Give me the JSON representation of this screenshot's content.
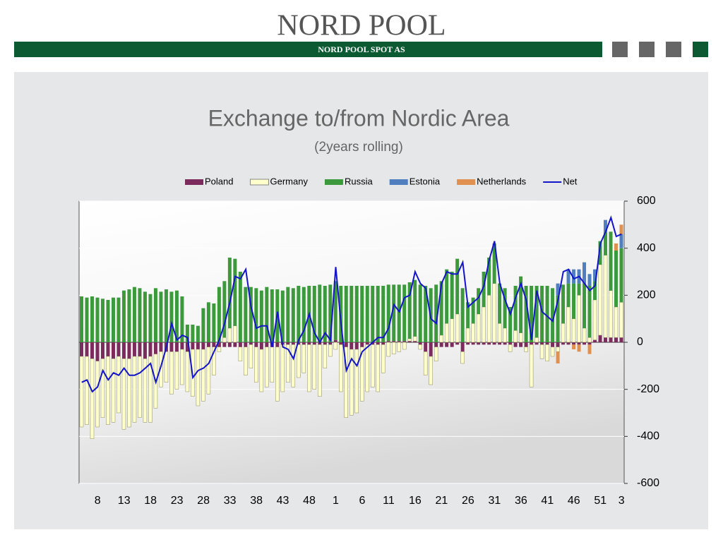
{
  "header": {
    "logo": "NORD POOL",
    "company": "NORD POOL SPOT AS"
  },
  "chart_data": {
    "type": "bar",
    "stacked": true,
    "title": "Exchange to/from Nordic Area",
    "subtitle": "(2years rolling)",
    "legend": "top",
    "categories": [
      null,
      null,
      null,
      "8",
      null,
      null,
      null,
      null,
      "13",
      null,
      null,
      null,
      null,
      "18",
      null,
      null,
      null,
      null,
      "23",
      null,
      null,
      null,
      null,
      "28",
      null,
      null,
      null,
      null,
      "33",
      null,
      null,
      null,
      null,
      "38",
      null,
      null,
      null,
      null,
      "43",
      null,
      null,
      null,
      null,
      "48",
      null,
      null,
      null,
      null,
      "1",
      null,
      null,
      null,
      null,
      "6",
      null,
      null,
      null,
      null,
      "11",
      null,
      null,
      null,
      null,
      "16",
      null,
      null,
      null,
      null,
      "21",
      null,
      null,
      null,
      null,
      "26",
      null,
      null,
      null,
      null,
      "31",
      null,
      null,
      null,
      null,
      "36",
      null,
      null,
      null,
      null,
      "41",
      null,
      null,
      null,
      null,
      "46",
      null,
      null,
      null,
      null,
      "51",
      null,
      null,
      null,
      "3"
    ],
    "ylim": [
      -600,
      600
    ],
    "yticks": [
      -600,
      -400,
      -200,
      0,
      200,
      400,
      600
    ],
    "grid": true,
    "series": [
      {
        "name": "Poland",
        "color": "#7b2c5c",
        "values": [
          -60,
          -60,
          -70,
          -80,
          -70,
          -60,
          -70,
          -60,
          -70,
          -70,
          -60,
          -60,
          -70,
          -60,
          -50,
          -40,
          -40,
          -40,
          -40,
          -30,
          -40,
          -30,
          -30,
          -30,
          -20,
          -20,
          -20,
          -20,
          -20,
          -20,
          -20,
          -20,
          -10,
          -20,
          -30,
          -20,
          -20,
          -20,
          -10,
          -10,
          -10,
          -10,
          -10,
          -10,
          -10,
          -10,
          -10,
          -10,
          10,
          -10,
          -20,
          -30,
          -30,
          -20,
          -10,
          -10,
          -10,
          -10,
          5,
          5,
          5,
          5,
          5,
          5,
          -10,
          -40,
          -60,
          -20,
          -20,
          -20,
          -20,
          -10,
          -40,
          -10,
          -10,
          -10,
          -10,
          -10,
          -10,
          -10,
          -10,
          -10,
          -20,
          -20,
          -20,
          -10,
          -10,
          -10,
          -10,
          -20,
          -20,
          -10,
          -10,
          -10,
          -10,
          -10,
          -10,
          10,
          30,
          20,
          20,
          20,
          20
        ]
      },
      {
        "name": "Germany",
        "color": "#ffffcc",
        "values": [
          -300,
          -290,
          -340,
          -280,
          -250,
          -290,
          -270,
          -240,
          -300,
          -290,
          -280,
          -260,
          -270,
          -280,
          -230,
          -150,
          -130,
          -180,
          -160,
          -150,
          -170,
          -200,
          -240,
          -220,
          -200,
          -120,
          -20,
          20,
          60,
          70,
          -60,
          -120,
          -100,
          -150,
          -180,
          -170,
          -150,
          -230,
          -200,
          -160,
          -180,
          -140,
          -120,
          -200,
          -190,
          -220,
          -100,
          -50,
          -30,
          -200,
          -300,
          -280,
          -270,
          -230,
          -200,
          -180,
          -200,
          -120,
          -60,
          -50,
          -40,
          -30,
          10,
          20,
          -20,
          -100,
          -120,
          -60,
          30,
          80,
          100,
          120,
          -50,
          60,
          80,
          120,
          150,
          200,
          250,
          80,
          60,
          -30,
          50,
          40,
          -20,
          -180,
          20,
          -60,
          -70,
          -40,
          -20,
          80,
          150,
          100,
          200,
          60,
          20,
          170,
          300,
          350,
          200,
          130,
          150
        ]
      },
      {
        "name": "Russia",
        "color": "#3c9a3c",
        "values": [
          195,
          190,
          195,
          190,
          185,
          180,
          190,
          190,
          220,
          225,
          235,
          230,
          215,
          205,
          230,
          215,
          225,
          215,
          220,
          195,
          75,
          75,
          70,
          145,
          170,
          165,
          235,
          240,
          300,
          285,
          300,
          235,
          235,
          230,
          220,
          235,
          225,
          225,
          220,
          235,
          230,
          240,
          235,
          240,
          240,
          245,
          240,
          245,
          250,
          240,
          240,
          240,
          240,
          240,
          240,
          240,
          240,
          240,
          240,
          240,
          240,
          240,
          240,
          240,
          245,
          240,
          230,
          245,
          230,
          230,
          200,
          235,
          230,
          110,
          110,
          110,
          150,
          160,
          170,
          170,
          170,
          150,
          190,
          240,
          240,
          240,
          220,
          240,
          240,
          230,
          200,
          165,
          100,
          150,
          50,
          190,
          220,
          80,
          100,
          100,
          250,
          240,
          230
        ]
      },
      {
        "name": "Estonia",
        "color": "#4f7fbf",
        "values": [
          0,
          0,
          0,
          0,
          0,
          0,
          0,
          0,
          0,
          0,
          0,
          0,
          0,
          0,
          0,
          0,
          0,
          0,
          0,
          0,
          0,
          0,
          0,
          0,
          0,
          0,
          0,
          0,
          0,
          0,
          0,
          0,
          0,
          0,
          0,
          0,
          0,
          0,
          0,
          0,
          0,
          0,
          0,
          0,
          0,
          0,
          0,
          0,
          0,
          0,
          0,
          0,
          0,
          0,
          0,
          0,
          0,
          0,
          0,
          0,
          0,
          0,
          0,
          0,
          0,
          0,
          0,
          0,
          0,
          0,
          0,
          0,
          0,
          0,
          0,
          0,
          0,
          0,
          0,
          0,
          0,
          0,
          0,
          0,
          0,
          0,
          0,
          0,
          0,
          0,
          50,
          0,
          60,
          60,
          60,
          90,
          50,
          50,
          0,
          50,
          0,
          0,
          60
        ]
      },
      {
        "name": "Netherlands",
        "color": "#e0904f",
        "values": [
          0,
          0,
          0,
          0,
          0,
          0,
          0,
          0,
          0,
          0,
          0,
          0,
          0,
          0,
          0,
          0,
          0,
          0,
          0,
          0,
          0,
          0,
          0,
          0,
          0,
          0,
          0,
          0,
          0,
          0,
          0,
          0,
          0,
          0,
          0,
          0,
          0,
          0,
          0,
          0,
          0,
          0,
          0,
          0,
          0,
          0,
          0,
          0,
          0,
          0,
          0,
          0,
          0,
          0,
          0,
          0,
          0,
          0,
          0,
          0,
          0,
          0,
          0,
          0,
          0,
          0,
          0,
          0,
          0,
          0,
          0,
          0,
          0,
          0,
          0,
          0,
          0,
          0,
          0,
          0,
          0,
          0,
          0,
          0,
          0,
          0,
          0,
          0,
          0,
          0,
          -50,
          0,
          0,
          -20,
          -30,
          0,
          -40,
          0,
          0,
          0,
          0,
          30,
          40
        ]
      },
      {
        "name": "Net",
        "color": "#1414c8",
        "type": "line",
        "values": [
          -170,
          -160,
          -210,
          -190,
          -120,
          -160,
          -130,
          -140,
          -110,
          -140,
          -140,
          -130,
          -110,
          -90,
          -170,
          -100,
          -20,
          80,
          10,
          30,
          20,
          -150,
          -120,
          -110,
          -90,
          -40,
          10,
          80,
          170,
          280,
          270,
          310,
          150,
          60,
          70,
          70,
          -20,
          130,
          -20,
          -30,
          -70,
          10,
          50,
          120,
          40,
          0,
          40,
          10,
          320,
          80,
          -120,
          -70,
          -100,
          -40,
          -20,
          0,
          20,
          20,
          60,
          160,
          130,
          190,
          200,
          300,
          250,
          230,
          100,
          80,
          250,
          300,
          290,
          290,
          340,
          150,
          170,
          190,
          240,
          350,
          430,
          250,
          180,
          120,
          190,
          250,
          180,
          10,
          220,
          130,
          110,
          90,
          180,
          300,
          310,
          270,
          280,
          250,
          220,
          240,
          420,
          470,
          530,
          450,
          460
        ]
      }
    ]
  }
}
